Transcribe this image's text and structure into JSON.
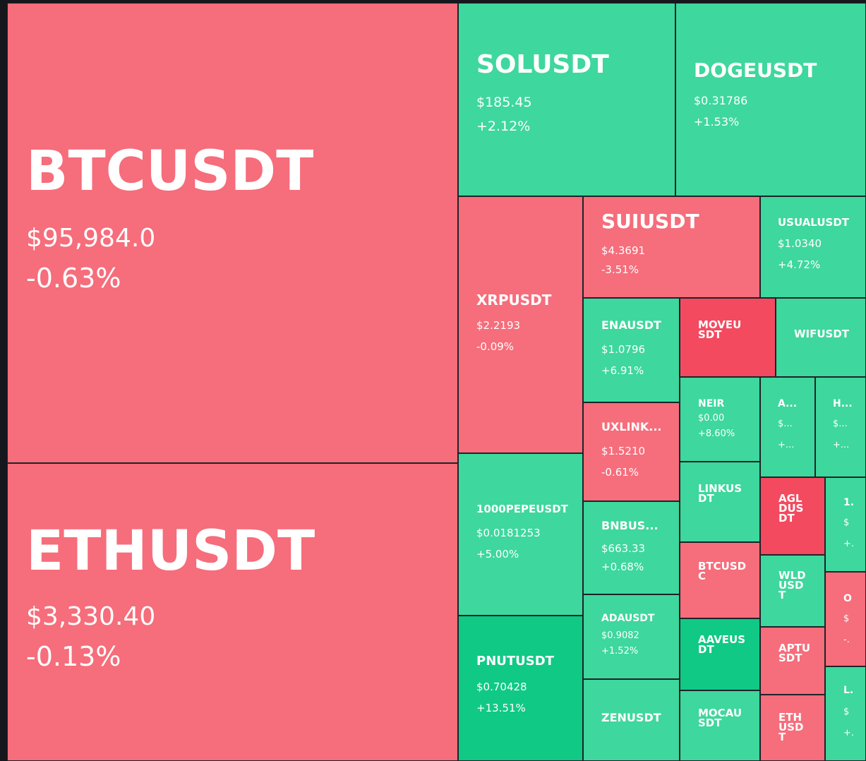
{
  "chart_data": {
    "type": "heatmap",
    "colors": {
      "down": "#f66d7b",
      "down_strong": "#f34a60",
      "up": "#3ed79d",
      "up_strong": "#10c985"
    },
    "tiles": [
      {
        "symbol": "BTCUSDT",
        "price": "$95,984.0",
        "change": "-0.63%"
      },
      {
        "symbol": "ETHUSDT",
        "price": "$3,330.40",
        "change": "-0.13%"
      },
      {
        "symbol": "SOLUSDT",
        "price": "$185.45",
        "change": "+2.12%"
      },
      {
        "symbol": "DOGEUSDT",
        "price": "$0.31786",
        "change": "+1.53%"
      },
      {
        "symbol": "XRPUSDT",
        "price": "$2.2193",
        "change": "-0.09%"
      },
      {
        "symbol": "SUIUSDT",
        "price": "$4.3691",
        "change": "-3.51%"
      },
      {
        "symbol": "USUALUSDT",
        "price": "$1.0340",
        "change": "+4.72%"
      },
      {
        "symbol": "ENAUSDT",
        "price": "$1.0796",
        "change": "+6.91%"
      },
      {
        "symbol": "MOVEUSDT",
        "price": "",
        "change": ""
      },
      {
        "symbol": "WIFUSDT",
        "price": "",
        "change": ""
      },
      {
        "symbol": "UXLINK...",
        "price": "$1.5210",
        "change": "-0.61%"
      },
      {
        "symbol": "NEIR",
        "price": "$0.00",
        "change": "+8.60%"
      },
      {
        "symbol": "A...",
        "price": "$...",
        "change": "+..."
      },
      {
        "symbol": "H...",
        "price": "$...",
        "change": "+..."
      },
      {
        "symbol": "1000PEPEUSDT",
        "price": "$0.0181253",
        "change": "+5.00%"
      },
      {
        "symbol": "LINKUSDT",
        "price": "",
        "change": ""
      },
      {
        "symbol": "AGLDUSDT",
        "price": "",
        "change": ""
      },
      {
        "symbol": "1.",
        "price": "$",
        "change": "+."
      },
      {
        "symbol": "BNBUS...",
        "price": "$663.33",
        "change": "+0.68%"
      },
      {
        "symbol": "BTCUSDC",
        "price": "",
        "change": ""
      },
      {
        "symbol": "WLDUSDT",
        "price": "",
        "change": ""
      },
      {
        "symbol": "O",
        "price": "$",
        "change": "-."
      },
      {
        "symbol": "ADAUSDT",
        "price": "$0.9082",
        "change": "+1.52%"
      },
      {
        "symbol": "PNUTUSDT",
        "price": "$0.70428",
        "change": "+13.51%"
      },
      {
        "symbol": "AAVEUSDT",
        "price": "",
        "change": ""
      },
      {
        "symbol": "APTUSDT",
        "price": "",
        "change": ""
      },
      {
        "symbol": "L.",
        "price": "$",
        "change": "+."
      },
      {
        "symbol": "ZENUSDT",
        "price": "",
        "change": ""
      },
      {
        "symbol": "MOCAUSDT",
        "price": "",
        "change": ""
      },
      {
        "symbol": "ETHUSDT",
        "price": "",
        "change": ""
      }
    ]
  }
}
